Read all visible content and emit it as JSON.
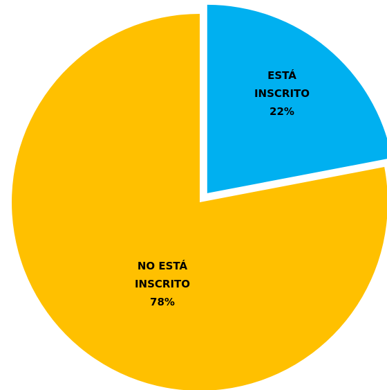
{
  "chart_data": {
    "type": "pie",
    "categories": [
      "ESTÁ INSCRITO",
      "NO ESTÁ INSCRITO"
    ],
    "values": [
      22,
      78
    ],
    "value_labels": [
      "22%",
      "78%"
    ],
    "colors": [
      "#00b0f0",
      "#ffc000"
    ]
  }
}
